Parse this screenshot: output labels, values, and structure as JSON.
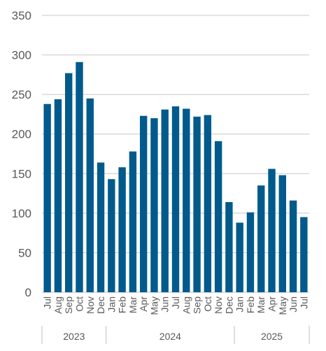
{
  "chart_data": {
    "type": "bar",
    "title": "",
    "xlabel": "",
    "ylabel": "",
    "ylim": [
      0,
      350
    ],
    "yticks": [
      0,
      50,
      100,
      150,
      200,
      250,
      300,
      350
    ],
    "grid": true,
    "legend": "none",
    "bar_color": "#005a8c",
    "grid_color": "#c8c8c8",
    "categories": [
      "Jul",
      "Aug",
      "Sep",
      "Oct",
      "Nov",
      "Dec",
      "Jan",
      "Feb",
      "Mar",
      "Apr",
      "May",
      "Jun",
      "Jul",
      "Aug",
      "Sep",
      "Oct",
      "Nov",
      "Dec",
      "Jan",
      "Feb",
      "Mar",
      "Apr",
      "May",
      "Jun",
      "Jul"
    ],
    "values": [
      238,
      244,
      277,
      291,
      245,
      164,
      143,
      158,
      178,
      223,
      220,
      231,
      235,
      232,
      222,
      224,
      191,
      114,
      88,
      101,
      135,
      156,
      148,
      116,
      95
    ],
    "year_groups": [
      {
        "label": "2023",
        "count": 6
      },
      {
        "label": "2024",
        "count": 12
      },
      {
        "label": "2025",
        "count": 7
      }
    ]
  }
}
